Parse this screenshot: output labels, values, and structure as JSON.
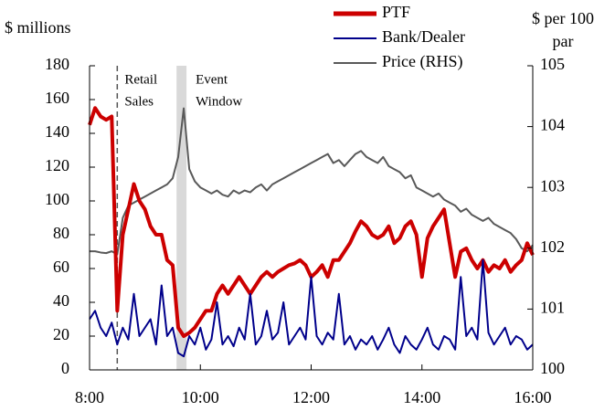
{
  "chart_data": {
    "type": "line",
    "y_label": "$ millions",
    "y2_label": [
      "$ per 100",
      "par"
    ],
    "legend": "top",
    "x": [
      8,
      8.1,
      8.2,
      8.3,
      8.4,
      8.5,
      8.6,
      8.7,
      8.8,
      8.9,
      9,
      9.1,
      9.2,
      9.3,
      9.4,
      9.5,
      9.6,
      9.7,
      9.8,
      9.9,
      10,
      10.1,
      10.2,
      10.3,
      10.4,
      10.5,
      10.6,
      10.7,
      10.8,
      10.9,
      11,
      11.1,
      11.2,
      11.3,
      11.4,
      11.5,
      11.6,
      11.7,
      11.8,
      11.9,
      12,
      12.1,
      12.2,
      12.3,
      12.4,
      12.5,
      12.6,
      12.7,
      12.8,
      12.9,
      13,
      13.1,
      13.2,
      13.3,
      13.4,
      13.5,
      13.6,
      13.7,
      13.8,
      13.9,
      14,
      14.1,
      14.2,
      14.3,
      14.4,
      14.5,
      14.6,
      14.7,
      14.8,
      14.9,
      15,
      15.1,
      15.2,
      15.3,
      15.4,
      15.5,
      15.6,
      15.7,
      15.8,
      15.9,
      16
    ],
    "xlim": [
      8,
      16
    ],
    "xticks": [
      {
        "value": 8,
        "label": "8:00"
      },
      {
        "value": 10,
        "label": "10:00"
      },
      {
        "value": 12,
        "label": "12:00"
      },
      {
        "value": 14,
        "label": "14:00"
      },
      {
        "value": 16,
        "label": "16:00"
      }
    ],
    "ylim": [
      0,
      180
    ],
    "yticks": [
      0,
      20,
      40,
      60,
      80,
      100,
      120,
      140,
      160,
      180
    ],
    "y2lim": [
      100,
      105
    ],
    "y2ticks": [
      100,
      101,
      102,
      103,
      104,
      105
    ],
    "vlines": [
      {
        "x": 8.5,
        "text": [
          "Retail",
          "Sales"
        ]
      }
    ],
    "spans": [
      {
        "x": [
          9.57,
          9.75
        ],
        "text": [
          "Event",
          "Window"
        ]
      }
    ],
    "series": [
      {
        "name": "PTF",
        "color": "#cc0000",
        "values": [
          145,
          155,
          150,
          148,
          150,
          35,
          80,
          95,
          110,
          100,
          95,
          85,
          80,
          80,
          65,
          62,
          25,
          20,
          22,
          25,
          30,
          35,
          35,
          45,
          50,
          45,
          50,
          55,
          50,
          45,
          50,
          55,
          58,
          55,
          58,
          60,
          62,
          63,
          65,
          62,
          55,
          58,
          62,
          55,
          65,
          65,
          70,
          75,
          82,
          88,
          85,
          80,
          78,
          80,
          85,
          75,
          78,
          85,
          88,
          80,
          55,
          78,
          85,
          90,
          95,
          75,
          55,
          70,
          72,
          65,
          60,
          65,
          58,
          62,
          60,
          65,
          58,
          62,
          65,
          75,
          68
        ]
      },
      {
        "name": "Bank/Dealer",
        "color": "#00008b",
        "values": [
          30,
          35,
          25,
          20,
          28,
          15,
          25,
          18,
          45,
          20,
          25,
          30,
          15,
          50,
          20,
          25,
          10,
          8,
          20,
          15,
          25,
          12,
          18,
          40,
          15,
          20,
          14,
          25,
          18,
          45,
          15,
          20,
          35,
          18,
          22,
          40,
          15,
          20,
          25,
          18,
          55,
          20,
          15,
          22,
          18,
          45,
          15,
          20,
          12,
          18,
          15,
          20,
          12,
          18,
          25,
          15,
          10,
          20,
          15,
          12,
          18,
          25,
          15,
          12,
          20,
          18,
          12,
          55,
          20,
          25,
          18,
          65,
          22,
          15,
          20,
          25,
          15,
          20,
          18,
          12,
          15
        ]
      },
      {
        "name": "Price (RHS)",
        "color": "#595959",
        "axis": "y2",
        "values": [
          101.95,
          101.95,
          101.93,
          101.92,
          101.95,
          101.9,
          102.5,
          102.7,
          102.75,
          102.8,
          102.85,
          102.9,
          102.95,
          103,
          103.05,
          103.15,
          103.5,
          104.3,
          103.3,
          103.1,
          103,
          102.95,
          102.9,
          102.95,
          102.88,
          102.85,
          102.95,
          102.9,
          102.95,
          102.92,
          103,
          103.05,
          102.95,
          103.05,
          103.1,
          103.15,
          103.2,
          103.25,
          103.3,
          103.35,
          103.4,
          103.45,
          103.5,
          103.55,
          103.4,
          103.45,
          103.35,
          103.45,
          103.55,
          103.6,
          103.5,
          103.45,
          103.4,
          103.5,
          103.35,
          103.3,
          103.25,
          103.15,
          103.2,
          103,
          102.95,
          102.9,
          102.85,
          102.9,
          102.8,
          102.75,
          102.7,
          102.6,
          102.65,
          102.55,
          102.5,
          102.45,
          102.5,
          102.4,
          102.35,
          102.3,
          102.25,
          102.15,
          102,
          101.95,
          102.05
        ]
      }
    ]
  }
}
